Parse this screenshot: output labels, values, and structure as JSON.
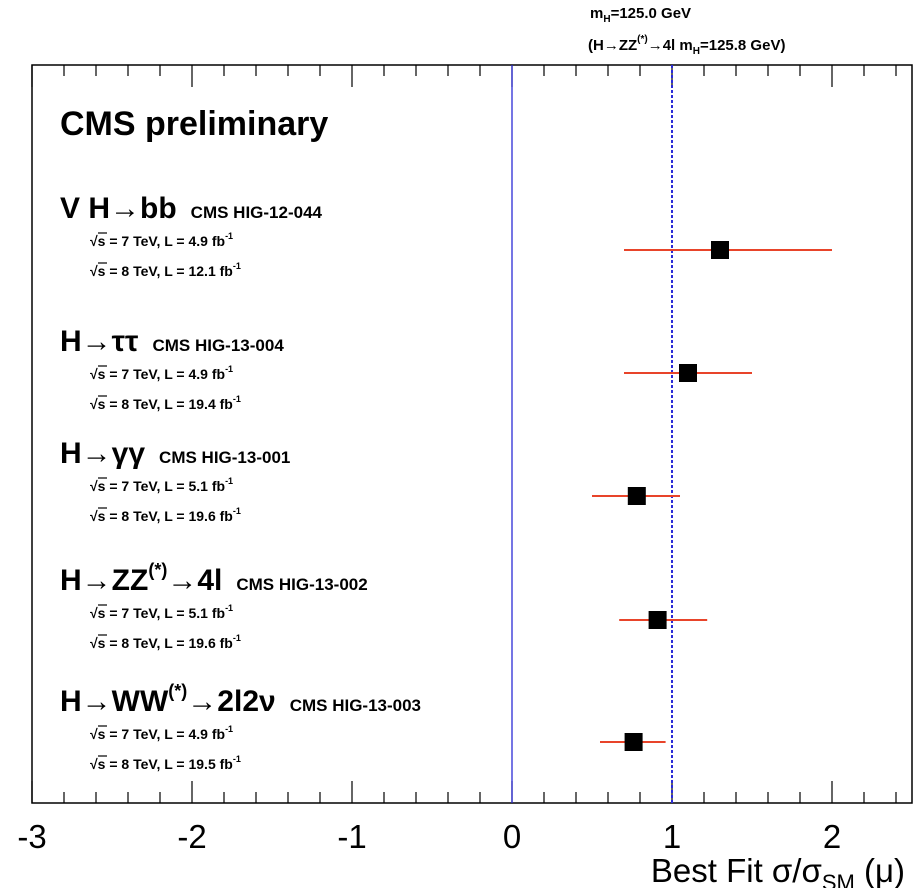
{
  "header": {
    "mass_line_main": "m",
    "mass_line_sub": "H",
    "mass_line_rest": "=125.0 GeV",
    "zz_line": {
      "open": "(H→ZZ",
      "sup": "(*)",
      "mid": "→4l m",
      "sub": "H",
      "rest": "=125.8 GeV)"
    }
  },
  "colors": {
    "axis": "#000000",
    "error_bar": "#e8442a",
    "sm_line": "#2b2bd6",
    "zero_line": "#2b2bd6",
    "marker": "#000000"
  },
  "chart_data": {
    "type": "scatter",
    "title": "CMS preliminary",
    "xlabel": {
      "main": "Best Fit σ/σ",
      "sub": "SM",
      "rest": " (μ)"
    },
    "xlim": [
      -3,
      2.5
    ],
    "x_ticks": [
      "-3",
      "-2",
      "-1",
      "0",
      "1",
      "2"
    ],
    "x_tick_values": [
      -3,
      -2,
      -1,
      0,
      1,
      2
    ],
    "reference_lines": [
      {
        "x": 0,
        "style": "solid"
      },
      {
        "x": 1,
        "style": "dashed"
      }
    ],
    "series": [
      {
        "channel": {
          "main": "V H→bb",
          "sup": "",
          "tail": ""
        },
        "ref": "CMS HIG-12-044",
        "lumi": [
          "√s = 7 TeV, L = 4.9 fb",
          "√s = 8 TeV, L = 12.1 fb"
        ],
        "lumi_sup": "-1",
        "mu": 1.3,
        "lo": 0.7,
        "hi": 2.0
      },
      {
        "channel": {
          "main": "H→ττ",
          "sup": "",
          "tail": ""
        },
        "ref": "CMS HIG-13-004",
        "lumi": [
          "√s = 7 TeV, L = 4.9 fb",
          "√s = 8 TeV, L = 19.4 fb"
        ],
        "lumi_sup": "-1",
        "mu": 1.1,
        "lo": 0.7,
        "hi": 1.5
      },
      {
        "channel": {
          "main": "H→γγ",
          "sup": "",
          "tail": ""
        },
        "ref": "CMS HIG-13-001",
        "lumi": [
          "√s = 7 TeV, L = 5.1 fb",
          "√s = 8 TeV, L = 19.6 fb"
        ],
        "lumi_sup": "-1",
        "mu": 0.78,
        "lo": 0.5,
        "hi": 1.05
      },
      {
        "channel": {
          "main": "H→ZZ",
          "sup": "(*)",
          "tail": "→4l"
        },
        "ref": "CMS HIG-13-002",
        "lumi": [
          "√s = 7 TeV, L = 5.1 fb",
          "√s = 8 TeV, L = 19.6 fb"
        ],
        "lumi_sup": "-1",
        "mu": 0.91,
        "lo": 0.67,
        "hi": 1.22
      },
      {
        "channel": {
          "main": "H→WW",
          "sup": "(*)",
          "tail": "→2l2ν"
        },
        "ref": "CMS HIG-13-003",
        "lumi": [
          "√s = 7 TeV, L = 4.9 fb",
          "√s = 8 TeV, L = 19.5 fb"
        ],
        "lumi_sup": "-1",
        "mu": 0.76,
        "lo": 0.55,
        "hi": 0.96
      }
    ]
  }
}
